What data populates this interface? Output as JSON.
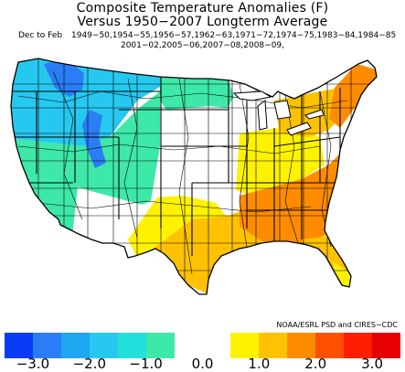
{
  "title": {
    "line1": "Composite Temperature Anomalies (F)",
    "line2": "Versus 1950−2007 Longterm Average"
  },
  "season": "Dec to Feb",
  "years_line1": "1949−50,1954−55,1956−57,1962−63,1971−72,1974−75,1983−84,1984−85",
  "years_line2": "2001−02,2005−06,2007−08,2008−09,",
  "credit": "NOAA/ESRL PSD and CIRES−CDC",
  "legend": {
    "colors": [
      "#0a3cf5",
      "#2b7df5",
      "#1ea6f0",
      "#27c8ef",
      "#24e0dc",
      "#3ee8a8",
      "#ffffff",
      "#ffffff",
      "#fff200",
      "#ffc200",
      "#ff8c00",
      "#ff5000",
      "#ff1e00",
      "#e60000"
    ],
    "tick_labels": [
      "−3.0",
      "−2.0",
      "−1.0",
      "0.0",
      "1.0",
      "2.0",
      "3.0"
    ]
  },
  "regions": [
    {
      "name": "pacific-northwest",
      "color": "#27c8ef"
    },
    {
      "name": "montana-idaho-core",
      "color": "#2b7df5"
    },
    {
      "name": "wyoming-colorado-core",
      "color": "#2b7df5"
    },
    {
      "name": "interior-west",
      "color": "#3ee8a8"
    },
    {
      "name": "california-nevada",
      "color": "#3ee8a8"
    },
    {
      "name": "dakotas-minnesota",
      "color": "#3ee8a8"
    },
    {
      "name": "southwest-plains",
      "color": "#ffffff"
    },
    {
      "name": "midwest",
      "color": "#ffffff"
    },
    {
      "name": "west-texas",
      "color": "#fff200"
    },
    {
      "name": "ohio-valley",
      "color": "#fff200"
    },
    {
      "name": "gulf-coast",
      "color": "#ffc200"
    },
    {
      "name": "northeast",
      "color": "#ffc200"
    },
    {
      "name": "southeast",
      "color": "#ff8c00"
    },
    {
      "name": "new-england",
      "color": "#ff8c00"
    },
    {
      "name": "florida",
      "color": "#ffc200"
    },
    {
      "name": "florida-tip",
      "color": "#fff200"
    }
  ]
}
